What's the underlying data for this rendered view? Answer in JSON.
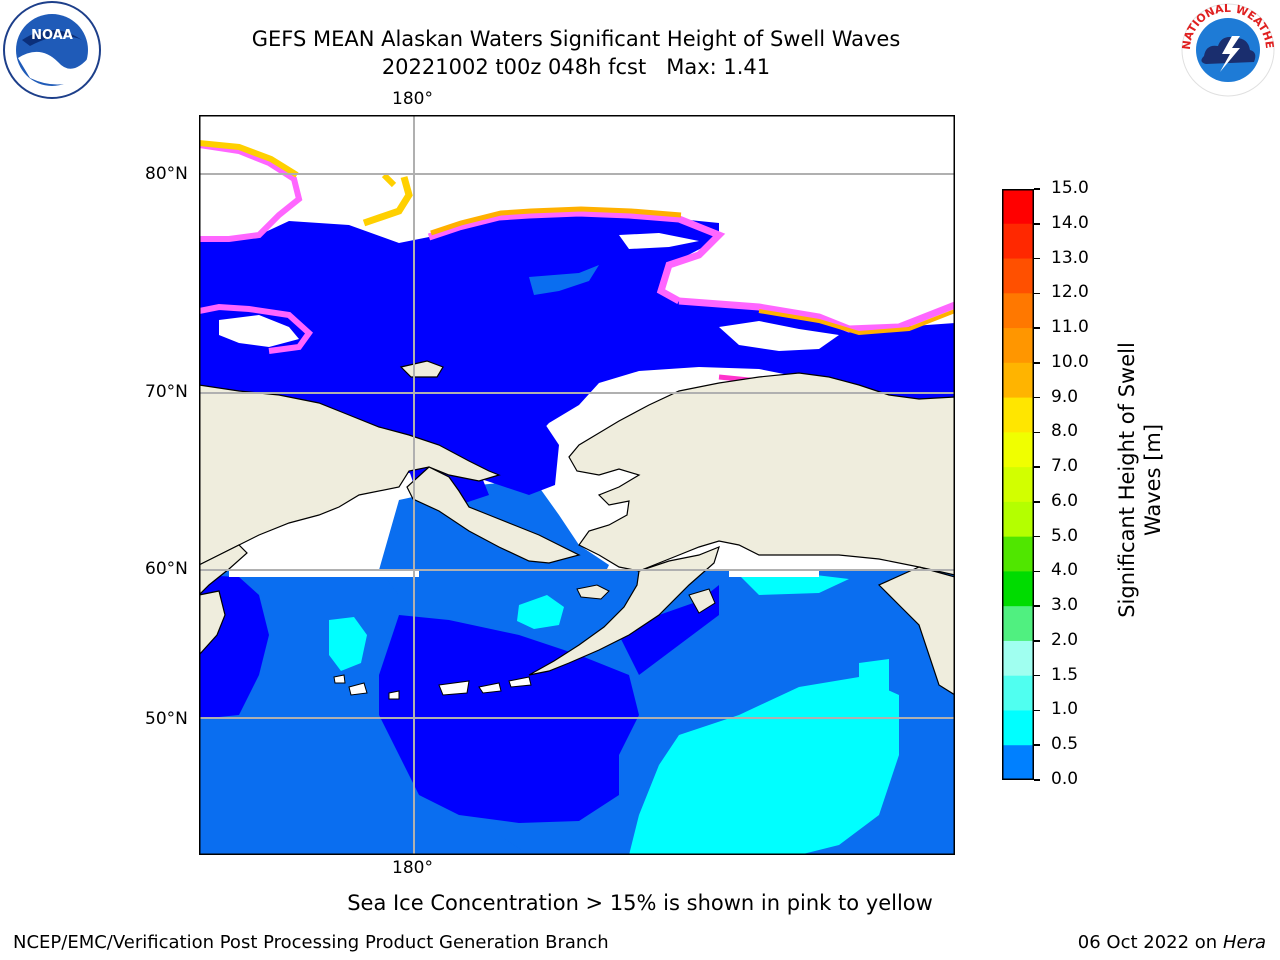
{
  "title": {
    "line1": "GEFS MEAN Alaskan Waters Significant Height of Swell Waves",
    "line2": "20221002 t00z 048h fcst   Max: 1.41"
  },
  "map": {
    "lon_label_top": "180°",
    "lon_label_bottom": "180°",
    "lat_labels": [
      "80°N",
      "70°N",
      "60°N",
      "50°N"
    ]
  },
  "colorbar": {
    "label_line1": "Significant Height of Swell",
    "label_line2": "Waves [m]",
    "ticks": [
      "15.0",
      "14.0",
      "13.0",
      "12.0",
      "11.0",
      "10.0",
      "9.0",
      "8.0",
      "7.0",
      "6.0",
      "5.0",
      "4.0",
      "3.0",
      "2.0",
      "1.5",
      "1.0",
      "0.5",
      "0.0"
    ],
    "colors": [
      "#ff0000",
      "#ff2800",
      "#ff5000",
      "#ff7800",
      "#ff9600",
      "#ffb400",
      "#ffe600",
      "#f0ff00",
      "#d2ff00",
      "#b4ff00",
      "#50e600",
      "#00dc00",
      "#50f080",
      "#a0fff0",
      "#50fff0",
      "#00ffff",
      "#0080ff",
      "#0000ff"
    ]
  },
  "note": "Sea Ice Concentration > 15% is shown in pink to yellow",
  "footer": {
    "left": "NCEP/EMC/Verification Post Processing Product Generation Branch",
    "right_date": "06 Oct 2022 on",
    "right_host": "Hera"
  },
  "logos": {
    "noaa_text": "NOAA",
    "nws_text": "NATIONAL WEATHER SERVICE"
  }
}
